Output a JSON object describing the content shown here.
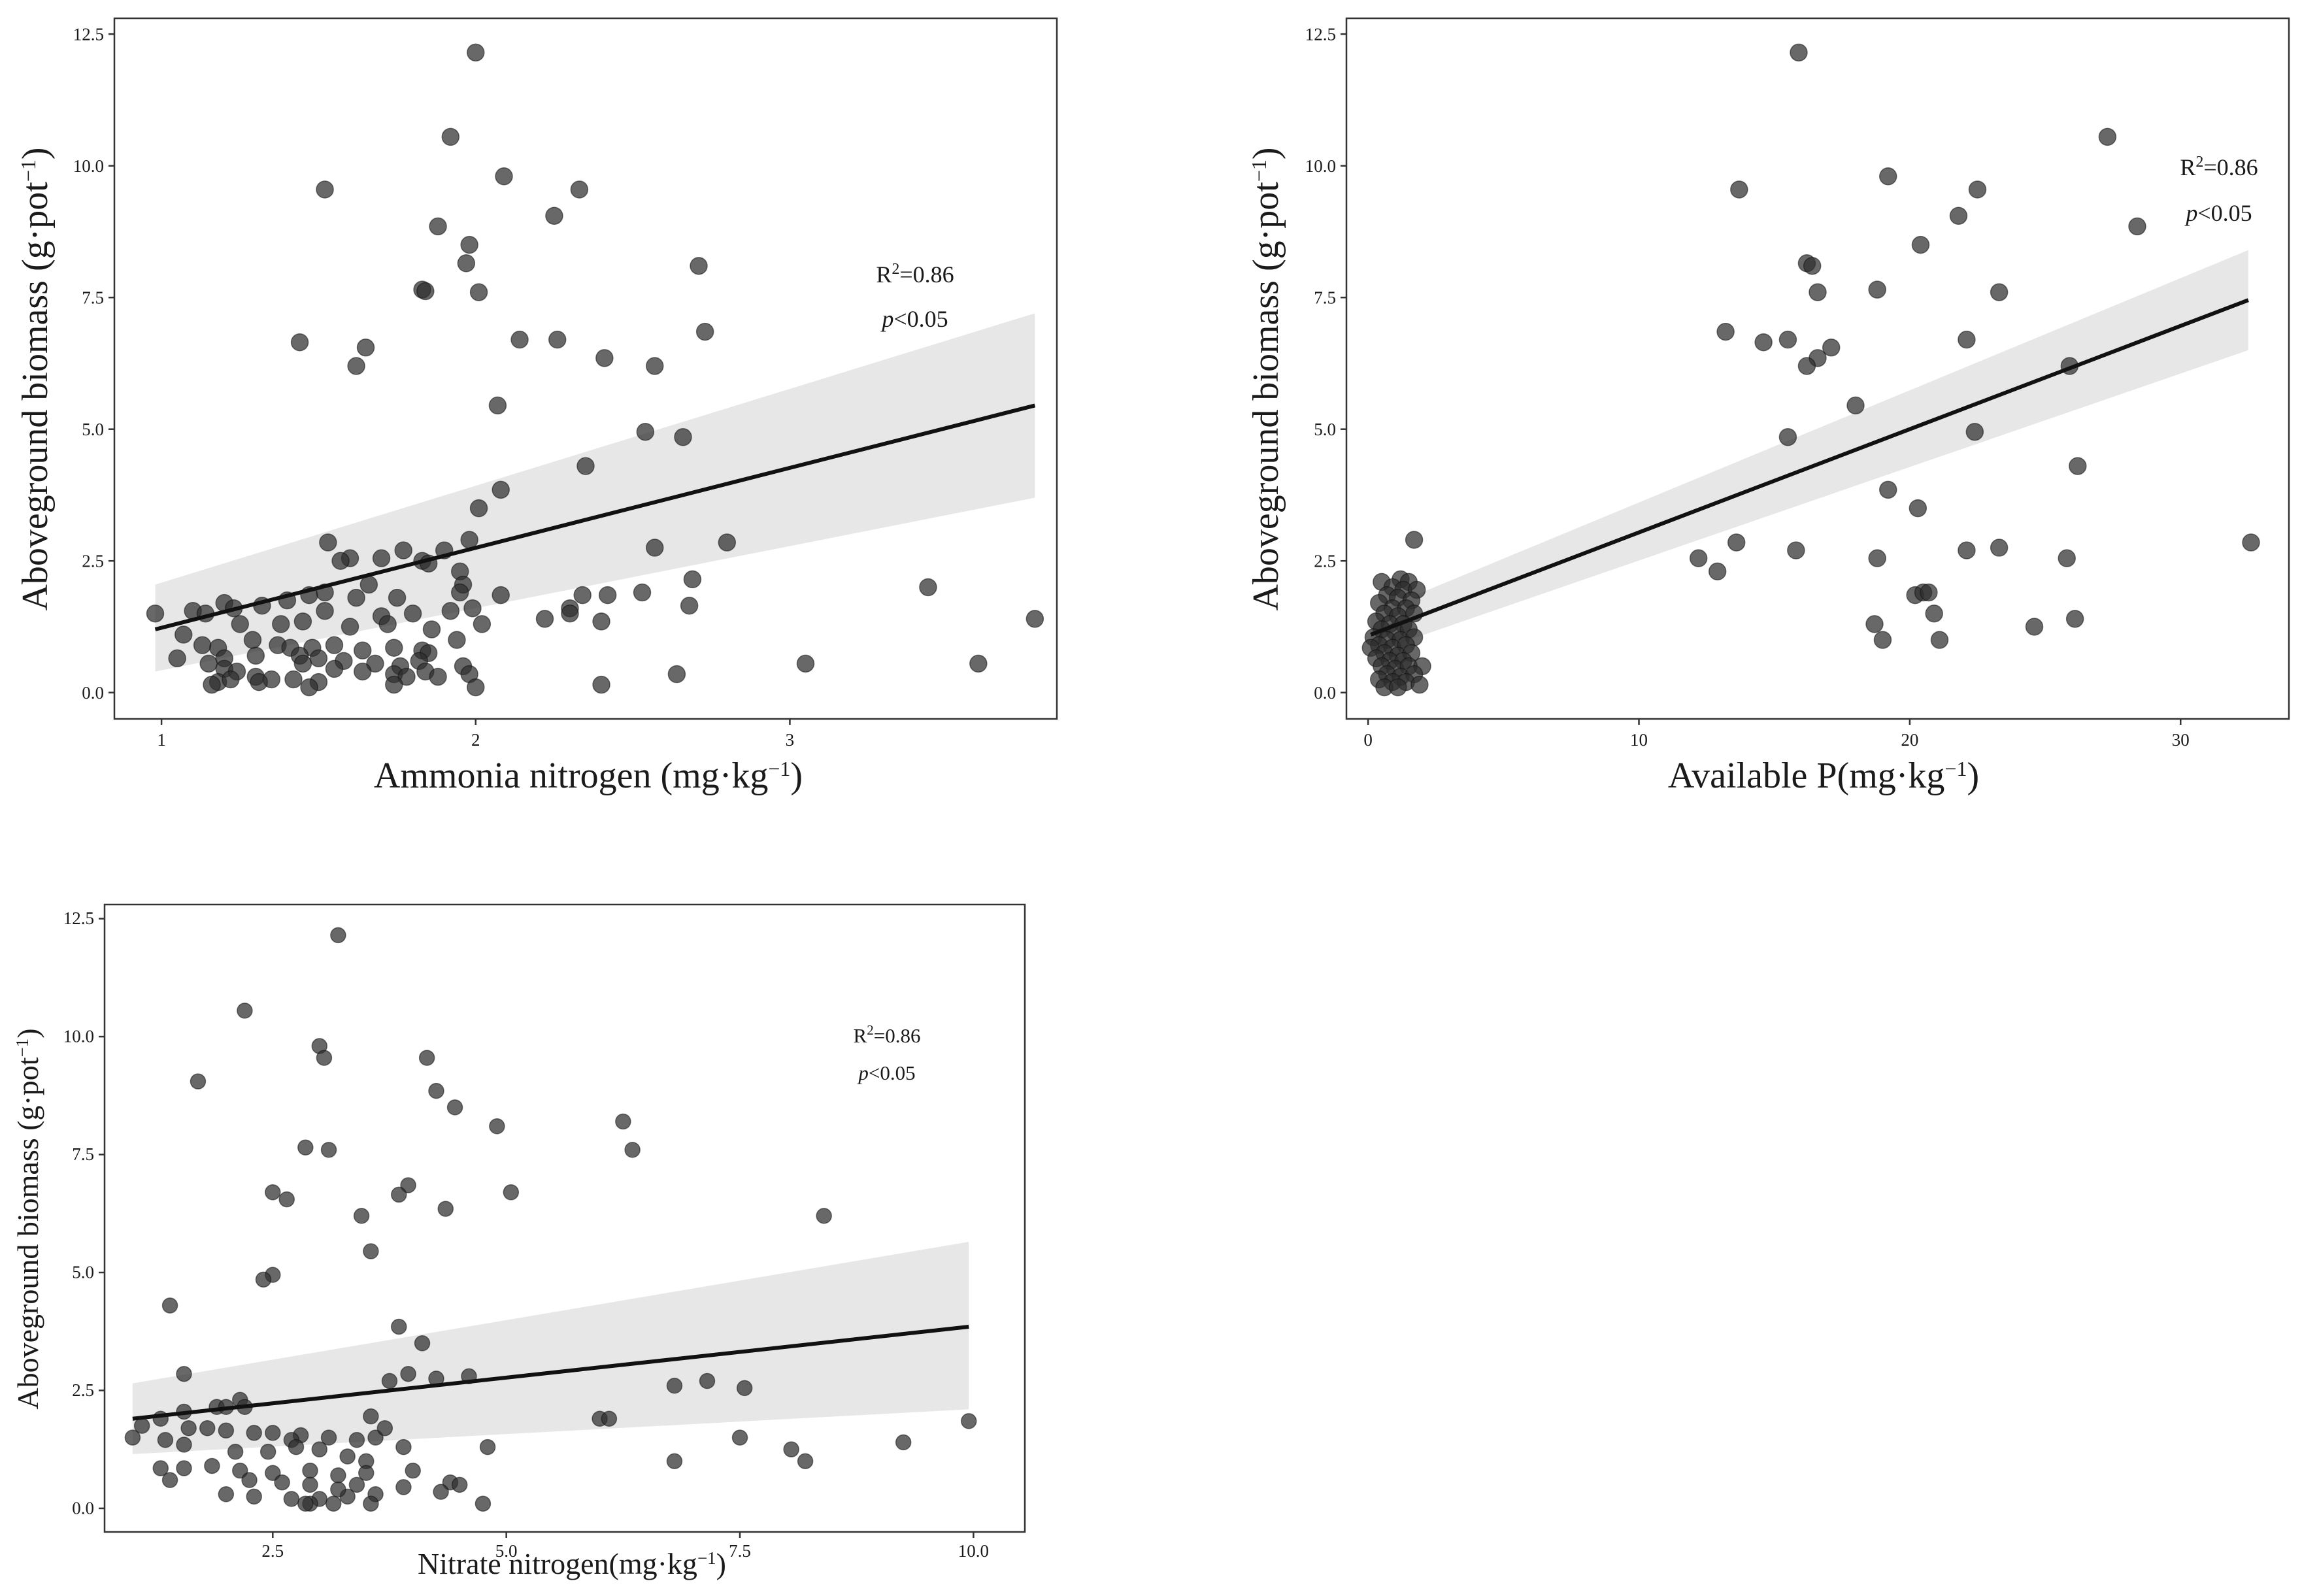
{
  "chart_data": [
    {
      "type": "scatter",
      "xlabel": "Ammonia nitrogen (mg·kg",
      "xlabel_sup": "−1",
      "xlabel_end": ")",
      "ylabel": "Aboveground biomass (g·pot",
      "ylabel_sup": "−1",
      "ylabel_end": ")",
      "xlim": [
        0.85,
        3.85
      ],
      "ylim": [
        -0.5,
        12.8
      ],
      "xticks": [
        1,
        2,
        3
      ],
      "xtick_labels": [
        "1",
        "2",
        "3"
      ],
      "yticks": [
        0,
        2.5,
        5,
        7.5,
        10,
        12.5
      ],
      "ytick_labels": [
        "0.0",
        "2.5",
        "5.0",
        "7.5",
        "10.0",
        "12.5"
      ],
      "fit": {
        "x": [
          0.98,
          3.78
        ],
        "y": [
          1.2,
          5.45
        ],
        "ci_low": [
          0.4,
          3.7
        ],
        "ci_high": [
          2.05,
          7.2
        ]
      },
      "annotation": {
        "r2_prefix": "R",
        "r2_sup": "2",
        "r2_value": "=0.86",
        "p_italic": "p",
        "p_value": "<0.05"
      },
      "points": [
        [
          2.0,
          12.15
        ],
        [
          1.92,
          10.55
        ],
        [
          2.09,
          9.8
        ],
        [
          1.52,
          9.55
        ],
        [
          2.33,
          9.55
        ],
        [
          2.25,
          9.05
        ],
        [
          1.88,
          8.85
        ],
        [
          1.98,
          8.5
        ],
        [
          1.97,
          8.15
        ],
        [
          2.71,
          8.1
        ],
        [
          1.83,
          7.65
        ],
        [
          1.84,
          7.62
        ],
        [
          2.01,
          7.6
        ],
        [
          2.73,
          6.85
        ],
        [
          2.14,
          6.7
        ],
        [
          2.26,
          6.7
        ],
        [
          1.44,
          6.65
        ],
        [
          1.65,
          6.55
        ],
        [
          2.41,
          6.35
        ],
        [
          1.62,
          6.2
        ],
        [
          2.57,
          6.2
        ],
        [
          2.07,
          5.45
        ],
        [
          2.54,
          4.95
        ],
        [
          2.66,
          4.85
        ],
        [
          2.35,
          4.3
        ],
        [
          2.08,
          3.85
        ],
        [
          2.01,
          3.5
        ],
        [
          1.53,
          2.85
        ],
        [
          2.8,
          2.85
        ],
        [
          1.98,
          2.9
        ],
        [
          1.77,
          2.7
        ],
        [
          1.9,
          2.7
        ],
        [
          2.57,
          2.75
        ],
        [
          1.6,
          2.55
        ],
        [
          1.7,
          2.55
        ],
        [
          1.57,
          2.5
        ],
        [
          1.83,
          2.5
        ],
        [
          1.85,
          2.45
        ],
        [
          1.95,
          2.3
        ],
        [
          2.69,
          2.15
        ],
        [
          1.66,
          2.05
        ],
        [
          1.96,
          2.05
        ],
        [
          3.44,
          2.0
        ],
        [
          1.95,
          1.9
        ],
        [
          2.08,
          1.85
        ],
        [
          2.34,
          1.85
        ],
        [
          2.42,
          1.85
        ],
        [
          2.53,
          1.9
        ],
        [
          1.47,
          1.85
        ],
        [
          1.52,
          1.9
        ],
        [
          1.62,
          1.8
        ],
        [
          1.75,
          1.8
        ],
        [
          1.4,
          1.75
        ],
        [
          1.32,
          1.65
        ],
        [
          1.2,
          1.7
        ],
        [
          1.23,
          1.6
        ],
        [
          1.1,
          1.55
        ],
        [
          1.14,
          1.5
        ],
        [
          0.98,
          1.5
        ],
        [
          2.3,
          1.6
        ],
        [
          2.68,
          1.65
        ],
        [
          1.52,
          1.55
        ],
        [
          1.7,
          1.45
        ],
        [
          1.8,
          1.5
        ],
        [
          1.92,
          1.55
        ],
        [
          1.99,
          1.6
        ],
        [
          2.22,
          1.4
        ],
        [
          2.3,
          1.5
        ],
        [
          2.4,
          1.35
        ],
        [
          2.02,
          1.3
        ],
        [
          3.78,
          1.4
        ],
        [
          1.38,
          1.3
        ],
        [
          1.45,
          1.35
        ],
        [
          1.6,
          1.25
        ],
        [
          1.72,
          1.3
        ],
        [
          1.86,
          1.2
        ],
        [
          1.94,
          1.0
        ],
        [
          1.25,
          1.3
        ],
        [
          1.07,
          1.1
        ],
        [
          1.29,
          1.0
        ],
        [
          1.37,
          0.9
        ],
        [
          1.41,
          0.85
        ],
        [
          1.48,
          0.85
        ],
        [
          1.55,
          0.9
        ],
        [
          1.64,
          0.8
        ],
        [
          1.74,
          0.85
        ],
        [
          1.83,
          0.8
        ],
        [
          1.85,
          0.75
        ],
        [
          1.18,
          0.85
        ],
        [
          1.13,
          0.9
        ],
        [
          1.2,
          0.65
        ],
        [
          1.05,
          0.65
        ],
        [
          1.3,
          0.7
        ],
        [
          1.44,
          0.7
        ],
        [
          1.5,
          0.65
        ],
        [
          1.58,
          0.6
        ],
        [
          1.68,
          0.55
        ],
        [
          1.76,
          0.5
        ],
        [
          1.82,
          0.6
        ],
        [
          1.45,
          0.55
        ],
        [
          1.55,
          0.45
        ],
        [
          1.64,
          0.4
        ],
        [
          1.74,
          0.35
        ],
        [
          1.78,
          0.3
        ],
        [
          1.84,
          0.4
        ],
        [
          1.96,
          0.5
        ],
        [
          1.98,
          0.35
        ],
        [
          1.15,
          0.55
        ],
        [
          1.2,
          0.45
        ],
        [
          1.24,
          0.4
        ],
        [
          1.3,
          0.3
        ],
        [
          1.35,
          0.25
        ],
        [
          1.42,
          0.25
        ],
        [
          1.5,
          0.2
        ],
        [
          1.47,
          0.1
        ],
        [
          1.18,
          0.2
        ],
        [
          1.16,
          0.15
        ],
        [
          1.22,
          0.25
        ],
        [
          1.31,
          0.2
        ],
        [
          1.74,
          0.15
        ],
        [
          2.0,
          0.1
        ],
        [
          2.4,
          0.15
        ],
        [
          2.64,
          0.35
        ],
        [
          3.05,
          0.55
        ],
        [
          3.6,
          0.55
        ],
        [
          1.88,
          0.3
        ]
      ]
    },
    {
      "type": "scatter",
      "xlabel": "Available P(mg·kg",
      "xlabel_sup": "−1",
      "xlabel_end": ")",
      "ylabel": "Aboveground biomass (g·pot",
      "ylabel_sup": "−1",
      "ylabel_end": ")",
      "xlim": [
        -0.8,
        34.0
      ],
      "ylim": [
        -0.5,
        12.8
      ],
      "xticks": [
        0,
        10,
        20,
        30
      ],
      "xtick_labels": [
        "0",
        "10",
        "20",
        "30"
      ],
      "yticks": [
        0,
        2.5,
        5,
        7.5,
        10,
        12.5
      ],
      "ytick_labels": [
        "0.0",
        "2.5",
        "5.0",
        "7.5",
        "10.0",
        "12.5"
      ],
      "fit": {
        "x": [
          0.1,
          32.5
        ],
        "y": [
          1.1,
          7.45
        ],
        "ci_low": [
          0.75,
          6.5
        ],
        "ci_high": [
          1.5,
          8.4
        ]
      },
      "annotation": {
        "r2_prefix": "R",
        "r2_sup": "2",
        "r2_value": "=0.86",
        "p_italic": "p",
        "p_value": "<0.05"
      },
      "points": [
        [
          15.9,
          12.15
        ],
        [
          27.3,
          10.55
        ],
        [
          19.2,
          9.8
        ],
        [
          13.7,
          9.55
        ],
        [
          22.5,
          9.55
        ],
        [
          21.8,
          9.05
        ],
        [
          28.4,
          8.85
        ],
        [
          20.4,
          8.5
        ],
        [
          16.2,
          8.15
        ],
        [
          16.4,
          8.1
        ],
        [
          18.8,
          7.65
        ],
        [
          16.6,
          7.6
        ],
        [
          23.3,
          7.6
        ],
        [
          13.2,
          6.85
        ],
        [
          15.5,
          6.7
        ],
        [
          22.1,
          6.7
        ],
        [
          14.6,
          6.65
        ],
        [
          17.1,
          6.55
        ],
        [
          16.6,
          6.35
        ],
        [
          16.2,
          6.2
        ],
        [
          25.9,
          6.2
        ],
        [
          18.0,
          5.45
        ],
        [
          22.4,
          4.95
        ],
        [
          15.5,
          4.85
        ],
        [
          26.2,
          4.3
        ],
        [
          19.2,
          3.85
        ],
        [
          20.3,
          3.5
        ],
        [
          13.6,
          2.85
        ],
        [
          32.6,
          2.85
        ],
        [
          1.7,
          2.9
        ],
        [
          15.8,
          2.7
        ],
        [
          22.1,
          2.7
        ],
        [
          23.3,
          2.75
        ],
        [
          12.2,
          2.55
        ],
        [
          18.8,
          2.55
        ],
        [
          25.8,
          2.55
        ],
        [
          12.9,
          2.3
        ],
        [
          20.2,
          1.85
        ],
        [
          20.5,
          1.9
        ],
        [
          20.7,
          1.9
        ],
        [
          20.9,
          1.5
        ],
        [
          26.1,
          1.4
        ],
        [
          18.7,
          1.3
        ],
        [
          24.6,
          1.25
        ],
        [
          19.0,
          1.0
        ],
        [
          21.1,
          1.0
        ],
        [
          0.5,
          2.1
        ],
        [
          1.2,
          2.15
        ],
        [
          1.5,
          2.1
        ],
        [
          0.9,
          2.0
        ],
        [
          1.3,
          1.95
        ],
        [
          1.8,
          1.95
        ],
        [
          0.7,
          1.85
        ],
        [
          1.1,
          1.8
        ],
        [
          1.6,
          1.75
        ],
        [
          0.4,
          1.7
        ],
        [
          0.9,
          1.6
        ],
        [
          1.4,
          1.6
        ],
        [
          0.6,
          1.5
        ],
        [
          1.1,
          1.45
        ],
        [
          1.7,
          1.5
        ],
        [
          0.3,
          1.35
        ],
        [
          0.8,
          1.3
        ],
        [
          1.3,
          1.3
        ],
        [
          0.5,
          1.2
        ],
        [
          1.0,
          1.15
        ],
        [
          1.5,
          1.2
        ],
        [
          0.2,
          1.05
        ],
        [
          0.7,
          1.0
        ],
        [
          1.2,
          1.0
        ],
        [
          1.7,
          1.05
        ],
        [
          0.4,
          0.9
        ],
        [
          0.9,
          0.85
        ],
        [
          1.4,
          0.9
        ],
        [
          0.1,
          0.85
        ],
        [
          0.6,
          0.75
        ],
        [
          1.1,
          0.7
        ],
        [
          1.6,
          0.75
        ],
        [
          0.3,
          0.65
        ],
        [
          0.8,
          0.6
        ],
        [
          1.3,
          0.6
        ],
        [
          0.5,
          0.5
        ],
        [
          1.0,
          0.45
        ],
        [
          1.5,
          0.5
        ],
        [
          2.0,
          0.5
        ],
        [
          0.7,
          0.35
        ],
        [
          1.2,
          0.3
        ],
        [
          1.7,
          0.35
        ],
        [
          0.4,
          0.25
        ],
        [
          0.9,
          0.2
        ],
        [
          1.4,
          0.2
        ],
        [
          0.6,
          0.1
        ],
        [
          1.1,
          0.1
        ],
        [
          1.9,
          0.15
        ]
      ]
    },
    {
      "type": "scatter",
      "xlabel": "Nitrate nitrogen(mg·kg",
      "xlabel_sup": "−1",
      "xlabel_end": ")",
      "ylabel": "Aboveground biomass (g·pot",
      "ylabel_sup": "−1",
      "ylabel_end": ")",
      "xlim": [
        0.7,
        10.55
      ],
      "ylim": [
        -0.5,
        12.8
      ],
      "xticks": [
        2.5,
        5.0,
        7.5,
        10.0
      ],
      "xtick_labels": [
        "2.5",
        "5.0",
        "7.5",
        "10.0"
      ],
      "yticks": [
        0,
        2.5,
        5,
        7.5,
        10,
        12.5
      ],
      "ytick_labels": [
        "0.0",
        "2.5",
        "5.0",
        "7.5",
        "10.0",
        "12.5"
      ],
      "fit": {
        "x": [
          1.0,
          9.95
        ],
        "y": [
          1.9,
          3.85
        ],
        "ci_low": [
          1.15,
          2.1
        ],
        "ci_high": [
          2.65,
          5.65
        ]
      },
      "annotation": {
        "r2_prefix": "R",
        "r2_sup": "2",
        "r2_value": "=0.86",
        "p_italic": "p",
        "p_value": "<0.05"
      },
      "points": [
        [
          3.2,
          12.15
        ],
        [
          2.2,
          10.55
        ],
        [
          3.0,
          9.8
        ],
        [
          3.05,
          9.55
        ],
        [
          4.15,
          9.55
        ],
        [
          1.7,
          9.05
        ],
        [
          4.25,
          8.85
        ],
        [
          4.45,
          8.5
        ],
        [
          6.25,
          8.2
        ],
        [
          4.9,
          8.1
        ],
        [
          2.85,
          7.65
        ],
        [
          3.1,
          7.6
        ],
        [
          6.35,
          7.6
        ],
        [
          3.95,
          6.85
        ],
        [
          2.5,
          6.7
        ],
        [
          3.85,
          6.65
        ],
        [
          5.05,
          6.7
        ],
        [
          2.65,
          6.55
        ],
        [
          4.35,
          6.35
        ],
        [
          3.45,
          6.2
        ],
        [
          8.4,
          6.2
        ],
        [
          3.55,
          5.45
        ],
        [
          2.5,
          4.95
        ],
        [
          2.4,
          4.85
        ],
        [
          1.4,
          4.3
        ],
        [
          3.85,
          3.85
        ],
        [
          4.1,
          3.5
        ],
        [
          1.55,
          2.85
        ],
        [
          3.95,
          2.85
        ],
        [
          4.6,
          2.8
        ],
        [
          3.75,
          2.7
        ],
        [
          4.25,
          2.75
        ],
        [
          7.15,
          2.7
        ],
        [
          6.8,
          2.6
        ],
        [
          7.55,
          2.55
        ],
        [
          2.15,
          2.3
        ],
        [
          1.9,
          2.15
        ],
        [
          2.0,
          2.15
        ],
        [
          2.2,
          2.15
        ],
        [
          1.55,
          2.05
        ],
        [
          1.3,
          1.9
        ],
        [
          6.0,
          1.9
        ],
        [
          6.1,
          1.9
        ],
        [
          9.95,
          1.85
        ],
        [
          1.1,
          1.75
        ],
        [
          1.6,
          1.7
        ],
        [
          1.8,
          1.7
        ],
        [
          2.0,
          1.65
        ],
        [
          2.3,
          1.6
        ],
        [
          2.5,
          1.6
        ],
        [
          2.8,
          1.55
        ],
        [
          3.1,
          1.5
        ],
        [
          3.4,
          1.45
        ],
        [
          3.6,
          1.5
        ],
        [
          3.7,
          1.7
        ],
        [
          3.55,
          1.95
        ],
        [
          1.0,
          1.5
        ],
        [
          1.35,
          1.45
        ],
        [
          1.55,
          1.35
        ],
        [
          2.7,
          1.45
        ],
        [
          7.5,
          1.5
        ],
        [
          9.25,
          1.4
        ],
        [
          3.9,
          1.3
        ],
        [
          4.8,
          1.3
        ],
        [
          8.05,
          1.25
        ],
        [
          2.1,
          1.2
        ],
        [
          2.45,
          1.2
        ],
        [
          2.75,
          1.3
        ],
        [
          3.0,
          1.25
        ],
        [
          3.3,
          1.1
        ],
        [
          3.5,
          1.0
        ],
        [
          8.2,
          1.0
        ],
        [
          6.8,
          1.0
        ],
        [
          1.3,
          0.85
        ],
        [
          1.55,
          0.85
        ],
        [
          1.85,
          0.9
        ],
        [
          2.15,
          0.8
        ],
        [
          2.5,
          0.75
        ],
        [
          2.9,
          0.8
        ],
        [
          3.2,
          0.7
        ],
        [
          3.5,
          0.75
        ],
        [
          4.0,
          0.8
        ],
        [
          1.4,
          0.6
        ],
        [
          2.25,
          0.6
        ],
        [
          2.6,
          0.55
        ],
        [
          2.9,
          0.5
        ],
        [
          3.4,
          0.5
        ],
        [
          3.9,
          0.45
        ],
        [
          4.4,
          0.55
        ],
        [
          4.5,
          0.5
        ],
        [
          2.0,
          0.3
        ],
        [
          2.3,
          0.25
        ],
        [
          2.7,
          0.2
        ],
        [
          3.0,
          0.2
        ],
        [
          3.3,
          0.25
        ],
        [
          3.6,
          0.3
        ],
        [
          2.9,
          0.1
        ],
        [
          3.15,
          0.1
        ],
        [
          4.75,
          0.1
        ],
        [
          3.55,
          0.1
        ],
        [
          2.85,
          0.1
        ],
        [
          4.3,
          0.35
        ],
        [
          3.2,
          0.4
        ]
      ]
    }
  ]
}
